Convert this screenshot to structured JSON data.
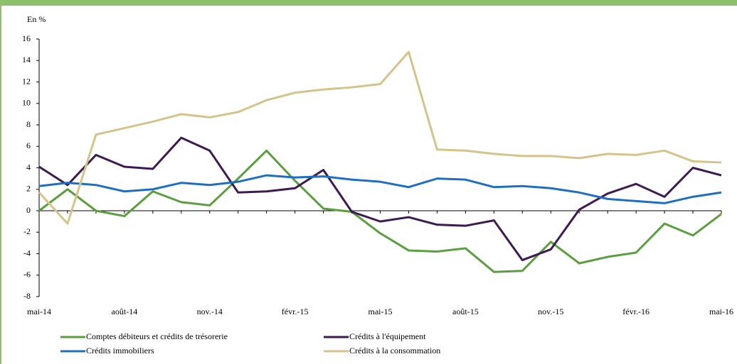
{
  "chart_data": {
    "type": "line",
    "y_label": "En %",
    "categories": [
      "mai-14",
      null,
      null,
      "août-14",
      null,
      null,
      "nov.-14",
      null,
      null,
      "févr.-15",
      null,
      null,
      "mai-15",
      null,
      null,
      "août-15",
      null,
      null,
      "nov.-15",
      null,
      null,
      "févr.-16",
      null,
      null,
      "mai-16"
    ],
    "series": [
      {
        "name": "Comptes débiteurs et crédits de trésorerie",
        "color": "#5a9e3f",
        "values": [
          0,
          2.0,
          0,
          -0.5,
          1.8,
          0.8,
          0.5,
          3.0,
          5.6,
          2.8,
          0.2,
          -0.1,
          -2.1,
          -3.7,
          -3.8,
          -3.5,
          -5.7,
          -5.6,
          -2.9,
          -4.9,
          -4.3,
          -3.9,
          -1.2,
          -2.3,
          -0.3
        ]
      },
      {
        "name": "Crédits à l'équipement",
        "color": "#3d1a4f",
        "values": [
          4.1,
          2.4,
          5.2,
          4.1,
          3.9,
          6.8,
          5.6,
          1.7,
          1.8,
          2.1,
          3.8,
          -0.1,
          -1.0,
          -0.6,
          -1.3,
          -1.4,
          -0.9,
          -4.6,
          -3.6,
          0.1,
          1.6,
          2.5,
          1.3,
          4.0,
          3.3
        ]
      },
      {
        "name": "Crédits immobiliers",
        "color": "#1f6fc0",
        "values": [
          2.3,
          2.6,
          2.4,
          1.8,
          2.0,
          2.6,
          2.4,
          2.7,
          3.3,
          3.1,
          3.2,
          2.9,
          2.7,
          2.2,
          3.0,
          2.9,
          2.2,
          2.3,
          2.1,
          1.7,
          1.1,
          0.9,
          0.7,
          1.3,
          1.7
        ]
      },
      {
        "name": "Crédits à la consommation",
        "color": "#d4c38a",
        "values": [
          1.7,
          -1.2,
          7.1,
          7.7,
          8.3,
          9.0,
          8.7,
          9.2,
          10.3,
          11.0,
          11.3,
          11.5,
          11.8,
          14.8,
          5.7,
          5.6,
          5.3,
          5.1,
          5.1,
          4.9,
          5.3,
          5.2,
          5.6,
          4.6,
          4.5
        ]
      }
    ],
    "ylim": [
      -8,
      16
    ],
    "yticks": [
      -8,
      -6,
      -4,
      -2,
      0,
      2,
      4,
      6,
      8,
      10,
      12,
      14,
      16
    ],
    "legend": "bottom"
  }
}
